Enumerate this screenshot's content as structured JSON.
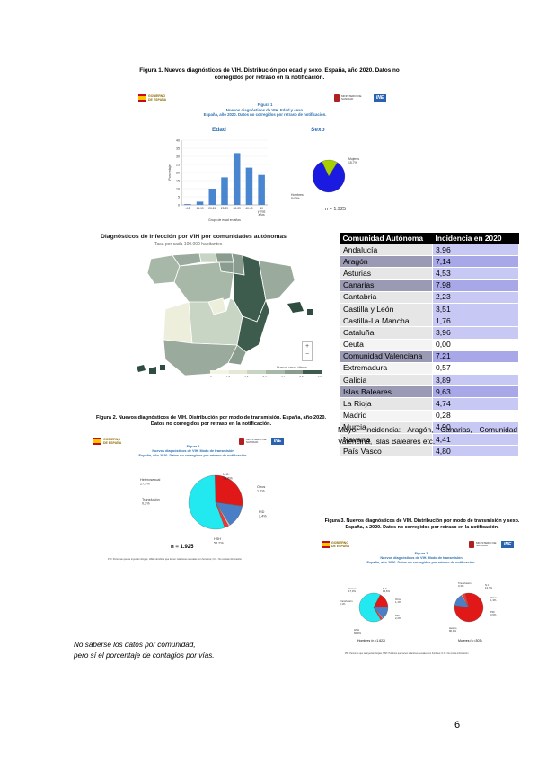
{
  "figure1": {
    "caption": "Figura 1. Nuevos diagnósticos de VIH. Distribución por edad y sexo. España, año 2020. Datos no corregidos por retraso en la notificación.",
    "inner_title": "Figura 1\nNuevos diagnósticos de VIH. Edad y sexo.\nEspaña, año 2020. Datos no corregidos por retraso de notificación.",
    "edad_label": "Edad",
    "sexo_label": "Sexo",
    "ylabel": "Porcentaje",
    "xlabel": "Grupo de edad en años",
    "n_label": "n = 1.925",
    "mujeres_label": "Mujeres\n15,7%",
    "hombres_label": "Hombres\n84,3%"
  },
  "figure2": {
    "caption": "Figura 2. Nuevos diagnósticos de VIH. Distribución por modo de transmisión. España, año 2020. Datos no corregidos por retraso en la notificación.",
    "inner_title": "Figura 2\nNuevos diagnósticos de VIH. Modo de transmisión\nEspaña, año 2020. Datos no corregidos por retraso de notificación.",
    "n_label": "n = 1.925",
    "footnote": "PID: Personas que se inyectan drogas; HSH: Hombres que tienen relaciones sexuales con hombres; N.C.: No consta información",
    "labels": {
      "hetero": "Heterosexual\n27,5%",
      "trans": "Transfusión\n0,2%",
      "nc": "N.C.\n13,6%",
      "otros": "Otros\n1,1%",
      "pid": "PID\n2,4%",
      "hsh": "HSH\n55,2%"
    }
  },
  "figure3": {
    "caption": "Figura 3. Nuevos diagnósticos de VIH. Distribución por modo de transmisión y sexo. España, a 2020. Datos no corregidos por retraso en la notificación.",
    "inner_title": "Figura 3\nNuevos diagnósticos de VIH. Modo de transmisión\nEspaña, año 2020. Datos no corregidos por retraso de notificación.",
    "hombres_n": "Hombres (n =1.622)",
    "mujeres_n": "Mujeres (n =303)",
    "footnote": "PID: Personas que se inyectan drogas; HSH: Hombres que tienen relaciones sexuales con hombres; N.C.: No consta información",
    "hombres_labels": {
      "hetero": "Hetero\n17,0%",
      "trans": "Transfusión\n0,1%",
      "nc": "N.C.\n13,6%",
      "otros": "Otros\n1,1%",
      "pid": "PID\n2,2%",
      "hsh": "HSH\n66,0%"
    },
    "mujeres_labels": {
      "trans": "Transfusión\n0,3%",
      "nc": "N.C.\n13,3%",
      "otros": "Otros\n1,3%",
      "pid": "PID\n3,6%",
      "hetero": "Hetero\n80,9%"
    }
  },
  "map": {
    "title": "Diagnósticos de infección por VIH por comunidades autónomas",
    "subtitle": "Tasa por cada 100.000 habitantes",
    "legend_title": "Nuevos casos últimos",
    "legend_ticks": [
      "0",
      "1,8",
      "3,5",
      "5,3",
      "7,1",
      "8,8",
      "9,6"
    ],
    "zoom_in": "+",
    "zoom_out": "−"
  },
  "table": {
    "header_com": "Comunidad Autónoma",
    "header_val": "Incidencia en 2020",
    "rows": [
      {
        "com": "Andalucía",
        "val": "3,96",
        "style": "a"
      },
      {
        "com": "Aragón",
        "val": "7,14",
        "style": "b"
      },
      {
        "com": "Asturias",
        "val": "4,53",
        "style": "a"
      },
      {
        "com": "Canarias",
        "val": "7,98",
        "style": "b"
      },
      {
        "com": "Cantabria",
        "val": "2,23",
        "style": "a"
      },
      {
        "com": "Castilla y León",
        "val": "3,51",
        "style": "a"
      },
      {
        "com": "Castilla-La Mancha",
        "val": "1,76",
        "style": "a"
      },
      {
        "com": "Cataluña",
        "val": "3,96",
        "style": "a"
      },
      {
        "com": "Ceuta",
        "val": "0,00",
        "style": "w"
      },
      {
        "com": "Comunidad Valenciana",
        "val": "7,21",
        "style": "b"
      },
      {
        "com": "Extremadura",
        "val": "0,57",
        "style": "w"
      },
      {
        "com": "Galicia",
        "val": "3,89",
        "style": "a"
      },
      {
        "com": "Islas Baleares",
        "val": "9,63",
        "style": "b"
      },
      {
        "com": "La Rioja",
        "val": "4,74",
        "style": "a"
      },
      {
        "com": "Madrid",
        "val": "0,28",
        "style": "w"
      },
      {
        "com": "Murcia",
        "val": "4,90",
        "style": "a"
      },
      {
        "com": "Navarra",
        "val": "4,41",
        "style": "a"
      },
      {
        "com": "País Vasco",
        "val": "4,80",
        "style": "a"
      }
    ]
  },
  "mayor_text": "Mayor incidencia: Aragón, Canarias, Comunidad Valencina, Islas Baleares etc.",
  "note_line1": "No saberse los datos por comunidad,",
  "note_line2": "pero sí el porcentaje de contagios por vías.",
  "page_number": "6",
  "chart_data": [
    {
      "type": "bar",
      "title": "Edad",
      "ylabel": "Porcentaje",
      "xlabel": "Grupo de edad en años",
      "categories": [
        "<15",
        "15-19",
        "20-24",
        "25-29",
        "30-39",
        "40-49",
        "50 y más años"
      ],
      "values": [
        0.5,
        2,
        10,
        17,
        32,
        23,
        18.5
      ],
      "ylim": [
        0,
        40
      ],
      "yticks": [
        0,
        5,
        10,
        15,
        20,
        25,
        30,
        35,
        40
      ],
      "bar_color": "#4a86d0"
    },
    {
      "type": "pie",
      "title": "Sexo",
      "slices": [
        {
          "label": "Hombres",
          "value": 84.3,
          "color": "#1a1ae0"
        },
        {
          "label": "Mujeres",
          "value": 15.7,
          "color": "#a8d000"
        }
      ]
    },
    {
      "type": "pie",
      "title": "Modo de transmisión",
      "slices": [
        {
          "label": "HSH",
          "value": 55.2,
          "color": "#22e8f0"
        },
        {
          "label": "Heterosexual",
          "value": 27.5,
          "color": "#e01818"
        },
        {
          "label": "Transfusión",
          "value": 0.2,
          "color": "#f0a020"
        },
        {
          "label": "N.C.",
          "value": 13.6,
          "color": "#4a7fc8"
        },
        {
          "label": "Otros",
          "value": 1.1,
          "color": "#c0c0c0"
        },
        {
          "label": "PID",
          "value": 2.4,
          "color": "#ff3030"
        }
      ]
    },
    {
      "type": "pie",
      "title": "Hombres (n =1.622)",
      "slices": [
        {
          "label": "HSH",
          "value": 66.0,
          "color": "#22e8f0"
        },
        {
          "label": "Hetero",
          "value": 17.0,
          "color": "#e01818"
        },
        {
          "label": "Transfusión",
          "value": 0.1,
          "color": "#f0a020"
        },
        {
          "label": "N.C.",
          "value": 13.6,
          "color": "#4a7fc8"
        },
        {
          "label": "Otros",
          "value": 1.1,
          "color": "#c0c0c0"
        },
        {
          "label": "PID",
          "value": 2.2,
          "color": "#ff3030"
        }
      ]
    },
    {
      "type": "pie",
      "title": "Mujeres (n =303)",
      "slices": [
        {
          "label": "Hetero",
          "value": 80.9,
          "color": "#e01818"
        },
        {
          "label": "Transfusión",
          "value": 0.3,
          "color": "#f0a020"
        },
        {
          "label": "N.C.",
          "value": 13.3,
          "color": "#4a7fc8"
        },
        {
          "label": "Otros",
          "value": 1.3,
          "color": "#c0c0c0"
        },
        {
          "label": "PID",
          "value": 3.6,
          "color": "#ff3030"
        }
      ]
    }
  ]
}
